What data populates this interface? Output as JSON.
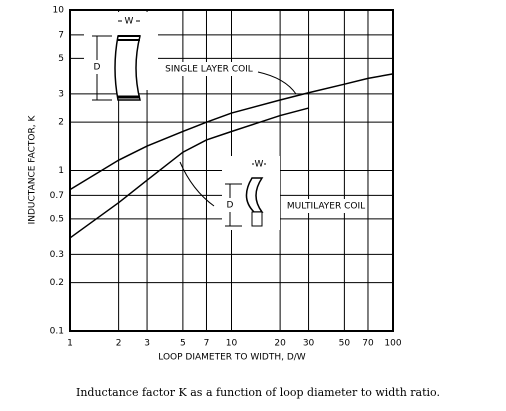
{
  "chart_data": {
    "type": "line",
    "xlabel": "LOOP DIAMETER TO WIDTH, D/W",
    "ylabel": "INDUCTANCE FACTOR, K",
    "caption": "Inductance factor K as a function of loop diameter to width ratio.",
    "x": [
      1,
      2,
      3,
      5,
      7,
      10,
      20,
      30,
      50,
      70,
      100
    ],
    "series": [
      {
        "name": "SINGLE LAYER COIL",
        "color": "#000000",
        "values": [
          0.76,
          1.16,
          1.42,
          1.75,
          2.0,
          2.28,
          2.75,
          3.05,
          3.45,
          3.75,
          4.0
        ]
      },
      {
        "name": "MULTILAYER COIL",
        "color": "#000000",
        "values": [
          0.38,
          0.63,
          0.87,
          1.3,
          1.55,
          1.75,
          2.2,
          2.45,
          null,
          null,
          null
        ]
      }
    ],
    "annotations": [
      "W",
      "D",
      "W",
      "D"
    ],
    "xlim": [
      1,
      100
    ],
    "ylim": [
      0.1,
      10
    ],
    "xticks": [
      1,
      2,
      3,
      5,
      7,
      10,
      20,
      30,
      50,
      70,
      100
    ],
    "yticks": [
      0.1,
      0.2,
      0.3,
      0.5,
      0.7,
      1,
      2,
      3,
      5,
      7,
      10
    ],
    "xscale": "log",
    "yscale": "log",
    "grid": true
  }
}
